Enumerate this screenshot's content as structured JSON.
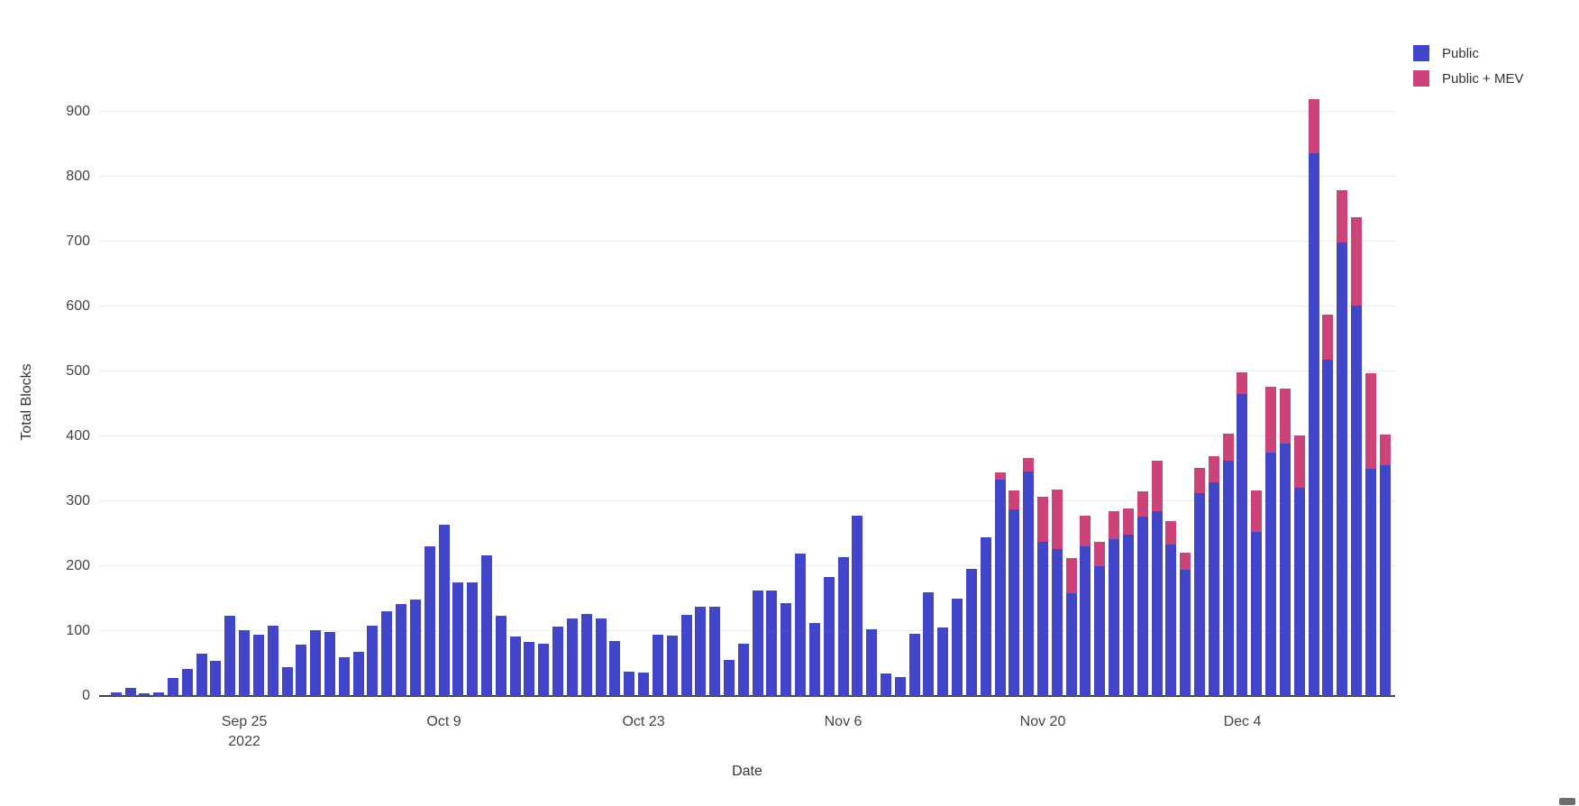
{
  "chart_data": {
    "type": "bar",
    "stacked": true,
    "title": "",
    "xlabel": "Date",
    "ylabel": "Total Blocks",
    "ylim": [
      0,
      950
    ],
    "grid": "horizontal",
    "legend_position": "top-right",
    "colors": {
      "public": "#4145c7",
      "mev": "#cb4379"
    },
    "yticks": [
      0,
      100,
      200,
      300,
      400,
      500,
      600,
      700,
      800,
      900
    ],
    "x_start_date": "2022-09-16",
    "x_end_date": "2022-12-14",
    "xticks": [
      {
        "label": "Sep 25",
        "sublabel": "2022",
        "bar_index": 10
      },
      {
        "label": "Oct 9",
        "sublabel": "",
        "bar_index": 24
      },
      {
        "label": "Oct 23",
        "sublabel": "",
        "bar_index": 38
      },
      {
        "label": "Nov 6",
        "sublabel": "",
        "bar_index": 52
      },
      {
        "label": "Nov 20",
        "sublabel": "",
        "bar_index": 66
      },
      {
        "label": "Dec 4",
        "sublabel": "",
        "bar_index": 80
      }
    ],
    "series": [
      {
        "name": "Public",
        "values": [
          5,
          12,
          4,
          6,
          28,
          42,
          65,
          54,
          123,
          102,
          95,
          108,
          45,
          79,
          102,
          99,
          60,
          68,
          108,
          130,
          141,
          149,
          230,
          264,
          175,
          175,
          217,
          123,
          92,
          83,
          80,
          107,
          119,
          127,
          119,
          85,
          37,
          36,
          95,
          93,
          125,
          137,
          137,
          56,
          81,
          162,
          163,
          143,
          220,
          112,
          184,
          214,
          278,
          103,
          35,
          29,
          96,
          160,
          106,
          150,
          196,
          245,
          334,
          287,
          346,
          238,
          227,
          158,
          231,
          200,
          241,
          248,
          277,
          285,
          234,
          194,
          312,
          329,
          362,
          465,
          253,
          375,
          389,
          321,
          836,
          518,
          699,
          602,
          350,
          355
        ]
      },
      {
        "name": "Public + MEV",
        "values": [
          0,
          0,
          0,
          0,
          0,
          0,
          0,
          0,
          0,
          0,
          0,
          0,
          0,
          0,
          0,
          0,
          0,
          0,
          0,
          0,
          0,
          0,
          0,
          0,
          0,
          0,
          0,
          0,
          0,
          0,
          0,
          0,
          0,
          0,
          0,
          0,
          0,
          0,
          0,
          0,
          0,
          0,
          0,
          0,
          0,
          0,
          0,
          0,
          0,
          0,
          0,
          0,
          0,
          0,
          0,
          0,
          0,
          0,
          0,
          0,
          0,
          0,
          11,
          29,
          20,
          69,
          91,
          55,
          47,
          38,
          44,
          41,
          38,
          78,
          36,
          27,
          39,
          41,
          42,
          34,
          63,
          101,
          85,
          81,
          83,
          69,
          80,
          135,
          147,
          48
        ]
      }
    ],
    "totals_note": "Pink (Public + MEV) segments are stacked on top of blue (Public) segments"
  },
  "legend": {
    "items": [
      {
        "label": "Public",
        "color": "#4145c7"
      },
      {
        "label": "Public + MEV",
        "color": "#cb4379"
      }
    ]
  },
  "axes": {
    "y_title": "Total Blocks",
    "x_title": "Date",
    "year_sublabel": "2022"
  }
}
